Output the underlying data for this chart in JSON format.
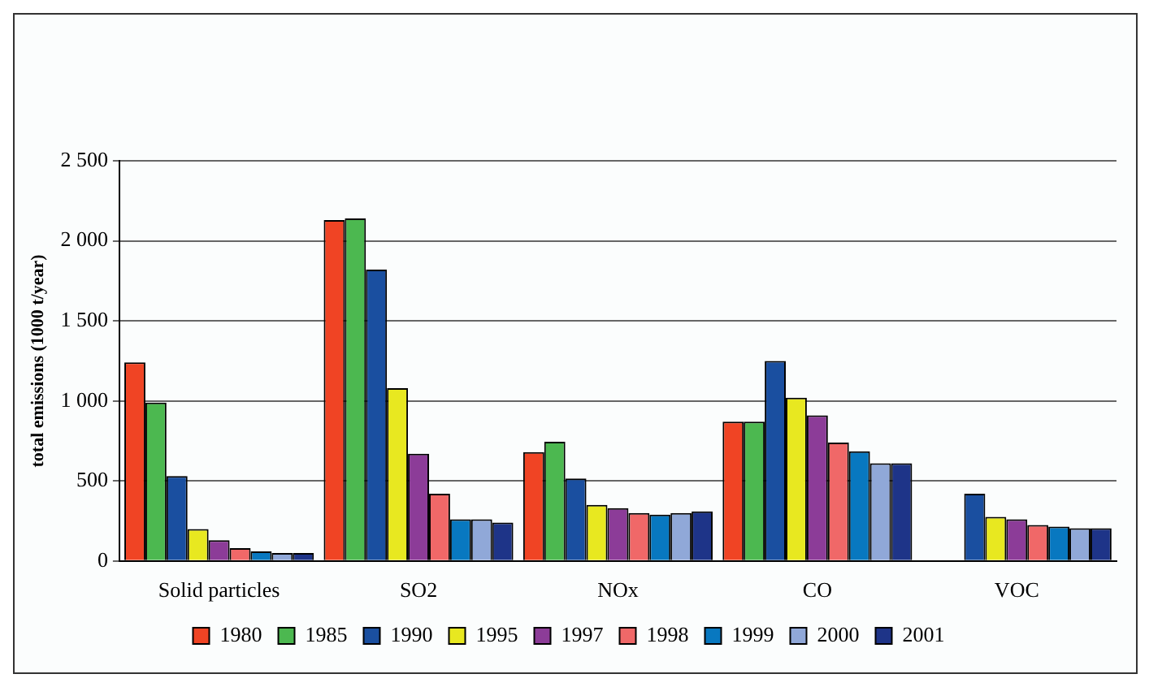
{
  "chart_data": {
    "type": "bar",
    "ylabel": "total emissions (1000 t/year)",
    "categories": [
      "Solid particles",
      "SO2",
      "NOx",
      "CO",
      "VOC"
    ],
    "series": [
      {
        "name": "1980",
        "color": "#f04424",
        "values": [
          1240,
          2130,
          680,
          870,
          null
        ]
      },
      {
        "name": "1985",
        "color": "#4cb850",
        "values": [
          990,
          2140,
          745,
          870,
          null
        ]
      },
      {
        "name": "1990",
        "color": "#1a4fa0",
        "values": [
          530,
          1820,
          515,
          1250,
          420
        ]
      },
      {
        "name": "1995",
        "color": "#e8e820",
        "values": [
          200,
          1080,
          350,
          1020,
          275
        ]
      },
      {
        "name": "1997",
        "color": "#8c3c98",
        "values": [
          130,
          670,
          330,
          910,
          260
        ]
      },
      {
        "name": "1998",
        "color": "#f06868",
        "values": [
          80,
          420,
          300,
          740,
          225
        ]
      },
      {
        "name": "1999",
        "color": "#0878c0",
        "values": [
          60,
          260,
          290,
          685,
          215
        ]
      },
      {
        "name": "2000",
        "color": "#90a8d8",
        "values": [
          50,
          260,
          300,
          610,
          205
        ]
      },
      {
        "name": "2001",
        "color": "#1e3488",
        "values": [
          50,
          240,
          310,
          610,
          205
        ]
      }
    ],
    "ylim": [
      0,
      2500
    ],
    "yticks": [
      0,
      {
        "value": 500,
        "label": "500"
      },
      {
        "value": 1000,
        "label": "1 000"
      },
      {
        "value": 1500,
        "label": "1 500"
      },
      {
        "value": 2000,
        "label": "2 000"
      },
      {
        "value": 2500,
        "label": "2 500"
      }
    ],
    "grid": "y",
    "legend": "bottom"
  }
}
